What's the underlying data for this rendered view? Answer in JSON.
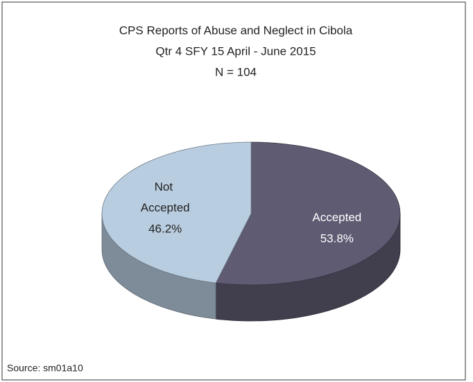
{
  "chart_data": {
    "type": "pie",
    "title": "CPS Reports of Abuse and Neglect in Cibola",
    "subtitle": "Qtr 4 SFY 15 April - June 2015",
    "annotation": "N = 104",
    "source": "Source:  sm01a10",
    "categories": [
      "Accepted",
      "Not Accepted"
    ],
    "values": [
      53.8,
      46.2
    ],
    "value_labels": [
      "53.8%",
      "46.2%"
    ],
    "colors": [
      "#5f5b73",
      "#b9cde0"
    ]
  }
}
